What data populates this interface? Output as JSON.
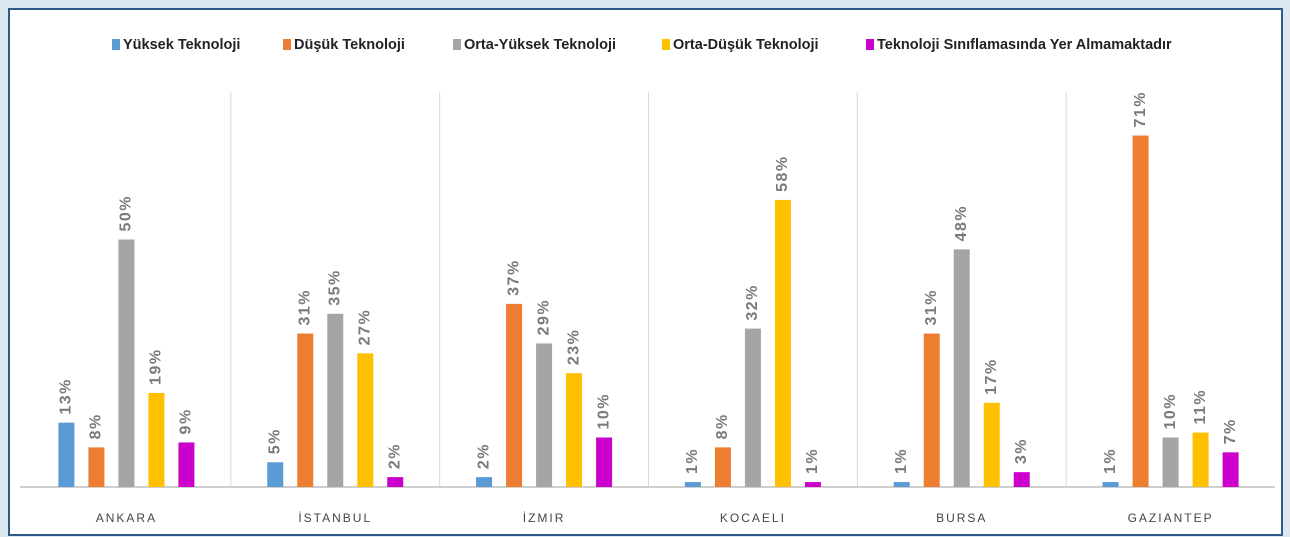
{
  "chart_data": {
    "type": "bar",
    "categories": [
      "ANKARA",
      "İSTANBUL",
      "İZMIR",
      "KOCAELI",
      "BURSA",
      "GAZIANTEP"
    ],
    "series": [
      {
        "name": "Yüksek Teknoloji",
        "color": "#5b9bd5",
        "values": [
          13,
          5,
          2,
          1,
          1,
          1
        ],
        "value_labels": [
          "13%",
          "5%",
          "2%",
          "1%",
          "1%",
          "1%"
        ]
      },
      {
        "name": "Düşük Teknoloji",
        "color": "#ed7d31",
        "values": [
          8,
          31,
          37,
          8,
          31,
          71
        ],
        "value_labels": [
          "8%",
          "31%",
          "37%",
          "8%",
          "31%",
          "71%"
        ]
      },
      {
        "name": "Orta-Yüksek Teknoloji",
        "color": "#a5a5a5",
        "values": [
          50,
          35,
          29,
          32,
          48,
          10
        ],
        "value_labels": [
          "50%",
          "35%",
          "29%",
          "32%",
          "48%",
          "10%"
        ]
      },
      {
        "name": "Orta-Düşük Teknoloji",
        "color": "#ffc000",
        "values": [
          19,
          27,
          23,
          58,
          17,
          11
        ],
        "value_labels": [
          "19%",
          "27%",
          "23%",
          "58%",
          "17%",
          "11%"
        ]
      },
      {
        "name": "Teknoloji Sınıflamasında Yer Almamaktadır",
        "color": "#cc00cc",
        "values": [
          9,
          2,
          10,
          1,
          3,
          7
        ],
        "value_labels": [
          "9%",
          "2%",
          "10%",
          "1%",
          "3%",
          "7%"
        ]
      }
    ]
  }
}
